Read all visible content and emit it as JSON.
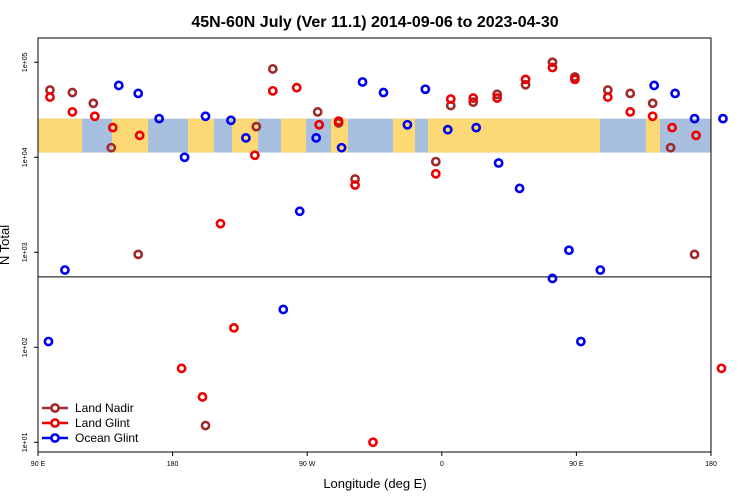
{
  "chart_data": {
    "type": "scatter",
    "title": "45N-60N July (Ver 11.1)   2014-09-06 to 2023-04-30",
    "xlabel": "Longitude (deg E)",
    "ylabel": "N Total",
    "x_ticks": [
      {
        "value": 90,
        "label": "90 E"
      },
      {
        "value": 180,
        "label": "180"
      },
      {
        "value": 270,
        "label": "90 W"
      },
      {
        "value": 360,
        "label": "0"
      },
      {
        "value": 450,
        "label": "90 E"
      },
      {
        "value": 540,
        "label": "180"
      }
    ],
    "y_ticks": [
      {
        "value": 10,
        "label": "1e+01"
      },
      {
        "value": 100,
        "label": "1e+02"
      },
      {
        "value": 1000,
        "label": "1e+03"
      },
      {
        "value": 10000,
        "label": "1e+04"
      },
      {
        "value": 100000,
        "label": "1e+05"
      }
    ],
    "xlim": [
      90,
      540
    ],
    "ylim": [
      7.9,
      180000
    ],
    "y_scale": "log",
    "y_break": 550,
    "map_band": {
      "ymin": 11200,
      "ymax": 25500,
      "land_color": "#fdd976",
      "ocean_color": "#a8bfe0"
    },
    "legend_position": "bottom-left",
    "series": [
      {
        "name": "Land Nadir",
        "color": "#9e2a2b",
        "points": [
          {
            "x": 98,
            "y": 51000
          },
          {
            "x": 113,
            "y": 48000
          },
          {
            "x": 127,
            "y": 37000
          },
          {
            "x": 139,
            "y": 12600
          },
          {
            "x": 157,
            "y": 950
          },
          {
            "x": 202,
            "y": 15
          },
          {
            "x": 236,
            "y": 21000
          },
          {
            "x": 247,
            "y": 85000
          },
          {
            "x": 277,
            "y": 30000
          },
          {
            "x": 291,
            "y": 23000
          },
          {
            "x": 302,
            "y": 5900
          },
          {
            "x": 356,
            "y": 9000
          },
          {
            "x": 366,
            "y": 35000
          },
          {
            "x": 381,
            "y": 38000
          },
          {
            "x": 397,
            "y": 46000
          },
          {
            "x": 416,
            "y": 58000
          },
          {
            "x": 434,
            "y": 100000
          },
          {
            "x": 449,
            "y": 70000
          },
          {
            "x": 471,
            "y": 51000
          },
          {
            "x": 486,
            "y": 47000
          },
          {
            "x": 501,
            "y": 37000
          },
          {
            "x": 513,
            "y": 12600
          },
          {
            "x": 529,
            "y": 950
          }
        ]
      },
      {
        "name": "Land Glint",
        "color": "#ee0000",
        "points": [
          {
            "x": 98,
            "y": 43000
          },
          {
            "x": 113,
            "y": 30000
          },
          {
            "x": 128,
            "y": 27000
          },
          {
            "x": 140,
            "y": 20500
          },
          {
            "x": 158,
            "y": 17000
          },
          {
            "x": 186,
            "y": 60
          },
          {
            "x": 200,
            "y": 30
          },
          {
            "x": 212,
            "y": 2000
          },
          {
            "x": 221,
            "y": 160
          },
          {
            "x": 235,
            "y": 10500
          },
          {
            "x": 247,
            "y": 50000
          },
          {
            "x": 263,
            "y": 54000
          },
          {
            "x": 278,
            "y": 22000
          },
          {
            "x": 291,
            "y": 24000
          },
          {
            "x": 302,
            "y": 5100
          },
          {
            "x": 314,
            "y": 10
          },
          {
            "x": 356,
            "y": 6700
          },
          {
            "x": 366,
            "y": 41000
          },
          {
            "x": 381,
            "y": 42000
          },
          {
            "x": 397,
            "y": 42000
          },
          {
            "x": 416,
            "y": 66000
          },
          {
            "x": 434,
            "y": 88000
          },
          {
            "x": 449,
            "y": 66000
          },
          {
            "x": 471,
            "y": 43000
          },
          {
            "x": 486,
            "y": 30000
          },
          {
            "x": 501,
            "y": 27000
          },
          {
            "x": 514,
            "y": 20500
          },
          {
            "x": 530,
            "y": 17000
          },
          {
            "x": 547,
            "y": 60
          }
        ]
      },
      {
        "name": "Ocean Glint",
        "color": "#0000ee",
        "points": [
          {
            "x": 97,
            "y": 115
          },
          {
            "x": 108,
            "y": 650
          },
          {
            "x": 144,
            "y": 57000
          },
          {
            "x": 157,
            "y": 47000
          },
          {
            "x": 171,
            "y": 25500
          },
          {
            "x": 188,
            "y": 10000
          },
          {
            "x": 202,
            "y": 27000
          },
          {
            "x": 219,
            "y": 24500
          },
          {
            "x": 229,
            "y": 16000
          },
          {
            "x": 254,
            "y": 250
          },
          {
            "x": 265,
            "y": 2700
          },
          {
            "x": 276,
            "y": 16000
          },
          {
            "x": 293,
            "y": 12600
          },
          {
            "x": 307,
            "y": 62000
          },
          {
            "x": 321,
            "y": 48000
          },
          {
            "x": 337,
            "y": 22000
          },
          {
            "x": 349,
            "y": 52000
          },
          {
            "x": 364,
            "y": 19500
          },
          {
            "x": 383,
            "y": 20500
          },
          {
            "x": 398,
            "y": 8700
          },
          {
            "x": 412,
            "y": 4700
          },
          {
            "x": 434,
            "y": 530
          },
          {
            "x": 445,
            "y": 1050
          },
          {
            "x": 453,
            "y": 115
          },
          {
            "x": 466,
            "y": 650
          },
          {
            "x": 502,
            "y": 57000
          },
          {
            "x": 516,
            "y": 47000
          },
          {
            "x": 529,
            "y": 25500
          },
          {
            "x": 548,
            "y": 25500
          }
        ]
      }
    ]
  }
}
